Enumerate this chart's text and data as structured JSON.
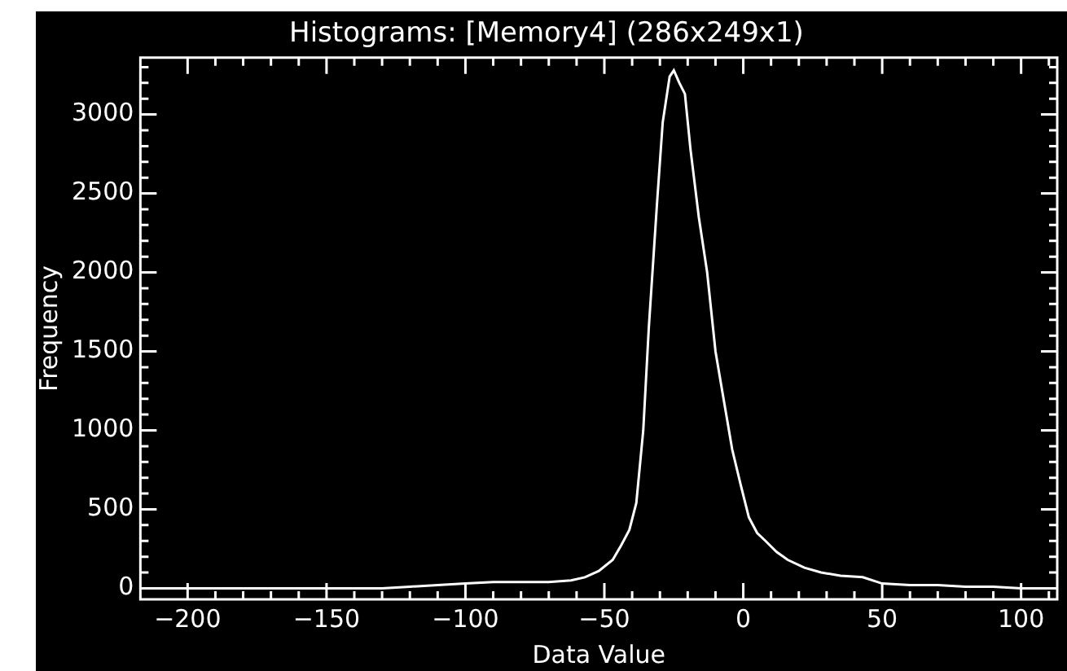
{
  "chart_data": {
    "type": "line",
    "title": "Histograms: [Memory4] (286x249x1)",
    "xlabel": "Data Value",
    "ylabel": "Frequency",
    "color": "#ffffff",
    "x": [
      -215,
      -200,
      -185,
      -170,
      -155,
      -140,
      -130,
      -120,
      -110,
      -100,
      -90,
      -80,
      -70,
      -62,
      -57,
      -52,
      -47,
      -44,
      -41,
      -38.5,
      -36,
      -34,
      -31,
      -29,
      -26.5,
      -25,
      -23,
      -21,
      -19,
      -16,
      -13,
      -10,
      -7,
      -4,
      -1,
      2,
      5,
      8,
      12,
      16,
      22,
      28,
      35,
      43,
      50,
      60,
      70,
      80,
      90,
      100,
      110
    ],
    "values": [
      0,
      0,
      0,
      0,
      0,
      0,
      0,
      10,
      20,
      30,
      40,
      40,
      40,
      50,
      70,
      110,
      180,
      270,
      370,
      540,
      1000,
      1650,
      2450,
      2950,
      3240,
      3280,
      3200,
      3130,
      2780,
      2350,
      2000,
      1500,
      1190,
      880,
      660,
      450,
      350,
      300,
      230,
      180,
      130,
      100,
      80,
      70,
      30,
      20,
      20,
      10,
      10,
      0,
      0
    ],
    "xlim": [
      -217,
      113
    ],
    "ylim": [
      -70,
      3360
    ],
    "xticks": [
      -200,
      {
        "value": -190,
        "label": null
      },
      {
        "value": -180,
        "label": null
      },
      {
        "value": -170,
        "label": null
      },
      {
        "value": -160,
        "label": null
      },
      -150,
      {
        "value": -140,
        "label": null
      },
      {
        "value": -130,
        "label": null
      },
      {
        "value": -120,
        "label": null
      },
      {
        "value": -110,
        "label": null
      },
      -100,
      {
        "value": -90,
        "label": null
      },
      {
        "value": -80,
        "label": null
      },
      {
        "value": -70,
        "label": null
      },
      {
        "value": -60,
        "label": null
      },
      -50,
      {
        "value": -40,
        "label": null
      },
      {
        "value": -30,
        "label": null
      },
      {
        "value": -20,
        "label": null
      },
      {
        "value": -10,
        "label": null
      },
      0,
      {
        "value": 10,
        "label": null
      },
      {
        "value": 20,
        "label": null
      },
      {
        "value": 30,
        "label": null
      },
      {
        "value": 40,
        "label": null
      },
      50,
      {
        "value": 60,
        "label": null
      },
      {
        "value": 70,
        "label": null
      },
      {
        "value": 80,
        "label": null
      },
      {
        "value": 90,
        "label": null
      },
      100,
      {
        "value": 110,
        "label": null
      }
    ],
    "yticks": [
      0,
      {
        "value": 100,
        "label": null
      },
      {
        "value": 200,
        "label": null
      },
      {
        "value": 300,
        "label": null
      },
      {
        "value": 400,
        "label": null
      },
      500,
      {
        "value": 600,
        "label": null
      },
      {
        "value": 700,
        "label": null
      },
      {
        "value": 800,
        "label": null
      },
      {
        "value": 900,
        "label": null
      },
      1000,
      {
        "value": 1100,
        "label": null
      },
      {
        "value": 1200,
        "label": null
      },
      {
        "value": 1300,
        "label": null
      },
      {
        "value": 1400,
        "label": null
      },
      1500,
      {
        "value": 1600,
        "label": null
      },
      {
        "value": 1700,
        "label": null
      },
      {
        "value": 1800,
        "label": null
      },
      {
        "value": 1900,
        "label": null
      },
      2000,
      {
        "value": 2100,
        "label": null
      },
      {
        "value": 2200,
        "label": null
      },
      {
        "value": 2300,
        "label": null
      },
      {
        "value": 2400,
        "label": null
      },
      2500,
      {
        "value": 2600,
        "label": null
      },
      {
        "value": 2700,
        "label": null
      },
      {
        "value": 2800,
        "label": null
      },
      {
        "value": 2900,
        "label": null
      },
      3000,
      {
        "value": 3100,
        "label": null
      },
      {
        "value": 3200,
        "label": null
      },
      {
        "value": 3300,
        "label": null
      }
    ]
  }
}
